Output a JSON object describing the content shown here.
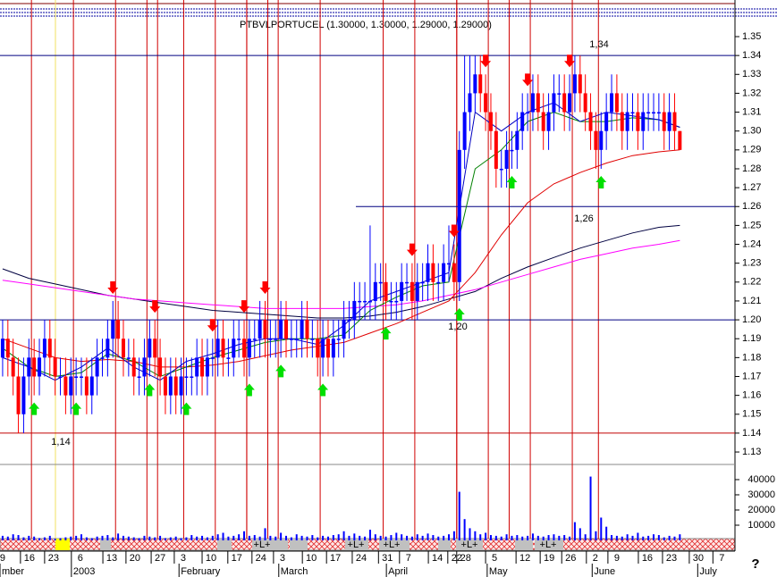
{
  "chart_data": {
    "type": "candlestick",
    "header": "PTBVLPORTUCEL (1.30000, 1.30000, 1.29000, 1.29000)",
    "help": "?",
    "xlim": [
      -0.5,
      139.5
    ],
    "ylim": [
      1.1234,
      1.3694
    ],
    "yticks": [
      1.13,
      1.14,
      1.15,
      1.16,
      1.17,
      1.18,
      1.19,
      {
        "value": 1.2,
        "label": "1.20"
      },
      1.21,
      1.22,
      1.23,
      1.24,
      1.25,
      1.26,
      1.27,
      1.28,
      1.29,
      {
        "value": 1.3,
        "label": "1.30"
      },
      1.31,
      1.32,
      1.33,
      1.34,
      1.35
    ],
    "volume_ylim": [
      0,
      48800
    ],
    "volume_yticks": [
      10000,
      20000,
      30000,
      40000
    ],
    "xticks": [
      {
        "value": 0,
        "label": "9"
      },
      {
        "value": 5.1,
        "label": "16"
      },
      {
        "value": 9.7,
        "label": "23"
      },
      {
        "value": 14.8,
        "label": "6"
      },
      {
        "value": 20.8,
        "label": "13"
      },
      {
        "value": 25.2,
        "label": "20"
      },
      {
        "value": 30,
        "label": "27"
      },
      {
        "value": 34.4,
        "label": "3"
      },
      {
        "value": 39.7,
        "label": "10"
      },
      {
        "value": 44.6,
        "label": "17"
      },
      {
        "value": 49.2,
        "label": "24"
      },
      {
        "value": 53.3,
        "label": "3"
      },
      {
        "value": 58.8,
        "label": "10"
      },
      {
        "value": 63.4,
        "label": "17"
      },
      {
        "value": 68.3,
        "label": "24"
      },
      {
        "value": 73.3,
        "label": "31"
      },
      {
        "value": 77.3,
        "label": "7"
      },
      {
        "value": 82.8,
        "label": "14"
      },
      {
        "value": 86.5,
        "label": "22"
      },
      {
        "value": 88.2,
        "label": "28"
      },
      {
        "value": 93.7,
        "label": "5"
      },
      {
        "value": 99.5,
        "label": "12"
      },
      {
        "value": 104.1,
        "label": "19"
      },
      {
        "value": 108.2,
        "label": "26"
      },
      {
        "value": 112.9,
        "label": "2"
      },
      {
        "value": 117,
        "label": "9"
      },
      {
        "value": 122.8,
        "label": "16"
      },
      {
        "value": 127.4,
        "label": "23"
      },
      {
        "value": 132.5,
        "label": "30"
      },
      {
        "value": 137,
        "label": "7"
      }
    ],
    "month_ticks": [
      {
        "value": -0.5,
        "label": "mber"
      },
      {
        "value": 13.1,
        "label": "2003"
      },
      {
        "value": 33.6,
        "label": "February"
      },
      {
        "value": 52.6,
        "label": "March"
      },
      {
        "value": 73.1,
        "label": "April"
      },
      {
        "value": 92.3,
        "label": "May"
      },
      {
        "value": 112.3,
        "label": "June"
      },
      {
        "value": 132.4,
        "label": "July"
      }
    ],
    "up_color": "#0000ff",
    "down_color": "#ff0000",
    "open": [
      1.18,
      1.19,
      1.18,
      1.17,
      1.15,
      1.17,
      1.18,
      1.17,
      1.18,
      1.19,
      1.18,
      1.17,
      1.17,
      1.16,
      1.17,
      1.17,
      1.17,
      1.16,
      1.17,
      1.18,
      1.18,
      1.19,
      1.2,
      1.19,
      1.18,
      1.18,
      1.17,
      1.17,
      1.18,
      1.19,
      1.18,
      1.17,
      1.16,
      1.17,
      1.16,
      1.17,
      1.17,
      1.17,
      1.18,
      1.17,
      1.18,
      1.18,
      1.19,
      1.18,
      1.18,
      1.19,
      1.19,
      1.18,
      1.19,
      1.19,
      1.2,
      1.19,
      1.19,
      1.19,
      1.2,
      1.19,
      1.19,
      1.19,
      1.2,
      1.19,
      1.19,
      1.18,
      1.19,
      1.18,
      1.19,
      1.19,
      1.2,
      1.2,
      1.21,
      1.21,
      1.21,
      1.21,
      1.22,
      1.22,
      1.21,
      1.21,
      1.21,
      1.22,
      1.22,
      1.21,
      1.22,
      1.22,
      1.23,
      1.22,
      1.22,
      1.23,
      1.23,
      1.22,
      1.29,
      1.31,
      1.32,
      1.33,
      1.32,
      1.31,
      1.3,
      1.28,
      1.28,
      1.29,
      1.29,
      1.3,
      1.31,
      1.31,
      1.32,
      1.31,
      1.3,
      1.31,
      1.32,
      1.32,
      1.31,
      1.32,
      1.33,
      1.32,
      1.31,
      1.3,
      1.29,
      1.3,
      1.31,
      1.32,
      1.31,
      1.3,
      1.31,
      1.31,
      1.3,
      1.31,
      1.31,
      1.31,
      1.31,
      1.3,
      1.31,
      1.3
    ],
    "high": [
      1.2,
      1.2,
      1.19,
      1.18,
      1.18,
      1.19,
      1.19,
      1.19,
      1.2,
      1.2,
      1.19,
      1.18,
      1.18,
      1.18,
      1.18,
      1.18,
      1.18,
      1.18,
      1.19,
      1.19,
      1.2,
      1.21,
      1.21,
      1.2,
      1.19,
      1.19,
      1.18,
      1.19,
      1.2,
      1.2,
      1.19,
      1.18,
      1.18,
      1.18,
      1.18,
      1.18,
      1.18,
      1.19,
      1.19,
      1.19,
      1.19,
      1.2,
      1.2,
      1.19,
      1.2,
      1.2,
      1.2,
      1.2,
      1.2,
      1.21,
      1.21,
      1.2,
      1.2,
      1.21,
      1.21,
      1.2,
      1.2,
      1.21,
      1.21,
      1.2,
      1.2,
      1.2,
      1.2,
      1.2,
      1.2,
      1.21,
      1.21,
      1.22,
      1.22,
      1.22,
      1.25,
      1.23,
      1.23,
      1.23,
      1.22,
      1.22,
      1.23,
      1.23,
      1.23,
      1.23,
      1.23,
      1.24,
      1.24,
      1.23,
      1.24,
      1.25,
      1.24,
      1.3,
      1.34,
      1.34,
      1.34,
      1.34,
      1.33,
      1.32,
      1.31,
      1.29,
      1.3,
      1.3,
      1.31,
      1.32,
      1.32,
      1.33,
      1.33,
      1.32,
      1.32,
      1.33,
      1.33,
      1.33,
      1.33,
      1.34,
      1.34,
      1.33,
      1.32,
      1.31,
      1.31,
      1.32,
      1.33,
      1.33,
      1.32,
      1.32,
      1.32,
      1.32,
      1.32,
      1.32,
      1.32,
      1.32,
      1.32,
      1.32,
      1.32,
      1.3
    ],
    "low": [
      1.17,
      1.17,
      1.16,
      1.14,
      1.14,
      1.16,
      1.16,
      1.16,
      1.17,
      1.17,
      1.16,
      1.16,
      1.15,
      1.15,
      1.16,
      1.16,
      1.15,
      1.15,
      1.16,
      1.17,
      1.17,
      1.18,
      1.18,
      1.17,
      1.17,
      1.16,
      1.16,
      1.16,
      1.17,
      1.17,
      1.16,
      1.15,
      1.15,
      1.15,
      1.15,
      1.16,
      1.16,
      1.16,
      1.16,
      1.16,
      1.17,
      1.17,
      1.17,
      1.17,
      1.17,
      1.18,
      1.17,
      1.17,
      1.18,
      1.18,
      1.18,
      1.18,
      1.18,
      1.18,
      1.18,
      1.18,
      1.18,
      1.18,
      1.18,
      1.18,
      1.17,
      1.17,
      1.17,
      1.17,
      1.18,
      1.18,
      1.19,
      1.19,
      1.2,
      1.2,
      1.2,
      1.2,
      1.21,
      1.2,
      1.2,
      1.2,
      1.2,
      1.21,
      1.2,
      1.2,
      1.21,
      1.21,
      1.21,
      1.21,
      1.21,
      1.22,
      1.21,
      1.21,
      1.28,
      1.3,
      1.31,
      1.31,
      1.3,
      1.29,
      1.27,
      1.27,
      1.27,
      1.28,
      1.28,
      1.29,
      1.3,
      1.3,
      1.3,
      1.29,
      1.29,
      1.3,
      1.31,
      1.3,
      1.3,
      1.31,
      1.31,
      1.3,
      1.29,
      1.28,
      1.28,
      1.29,
      1.3,
      1.3,
      1.29,
      1.29,
      1.3,
      1.29,
      1.29,
      1.3,
      1.3,
      1.3,
      1.29,
      1.29,
      1.29,
      1.29
    ],
    "close": [
      1.19,
      1.18,
      1.17,
      1.15,
      1.17,
      1.18,
      1.17,
      1.18,
      1.19,
      1.18,
      1.17,
      1.17,
      1.16,
      1.17,
      1.17,
      1.17,
      1.16,
      1.17,
      1.18,
      1.18,
      1.19,
      1.2,
      1.19,
      1.18,
      1.18,
      1.17,
      1.17,
      1.18,
      1.19,
      1.18,
      1.17,
      1.16,
      1.17,
      1.16,
      1.17,
      1.17,
      1.17,
      1.18,
      1.17,
      1.18,
      1.18,
      1.19,
      1.18,
      1.18,
      1.19,
      1.19,
      1.18,
      1.19,
      1.19,
      1.2,
      1.19,
      1.19,
      1.19,
      1.2,
      1.19,
      1.19,
      1.19,
      1.2,
      1.19,
      1.19,
      1.18,
      1.19,
      1.18,
      1.19,
      1.19,
      1.2,
      1.2,
      1.21,
      1.21,
      1.21,
      1.21,
      1.22,
      1.22,
      1.21,
      1.21,
      1.21,
      1.22,
      1.22,
      1.21,
      1.22,
      1.22,
      1.23,
      1.22,
      1.22,
      1.23,
      1.23,
      1.22,
      1.29,
      1.31,
      1.32,
      1.33,
      1.32,
      1.31,
      1.3,
      1.28,
      1.28,
      1.29,
      1.29,
      1.3,
      1.31,
      1.31,
      1.32,
      1.31,
      1.3,
      1.31,
      1.32,
      1.32,
      1.31,
      1.32,
      1.33,
      1.32,
      1.31,
      1.3,
      1.29,
      1.3,
      1.31,
      1.32,
      1.31,
      1.3,
      1.31,
      1.31,
      1.3,
      1.31,
      1.31,
      1.31,
      1.31,
      1.3,
      1.31,
      1.3,
      1.29
    ],
    "volume": [
      3000,
      2500,
      4000,
      3500,
      2000,
      3000,
      2500,
      1500,
      2000,
      3000,
      1000,
      1500,
      2000,
      2500,
      3000,
      4000,
      2000,
      1500,
      2500,
      3000,
      3500,
      2000,
      4500,
      3000,
      2500,
      2000,
      1500,
      3000,
      2500,
      2000,
      3000,
      1500,
      2000,
      2500,
      1500,
      2000,
      3500,
      2500,
      3000,
      2000,
      3000,
      4000,
      5000,
      2500,
      3000,
      4000,
      6000,
      3000,
      3500,
      2500,
      8000,
      3000,
      2500,
      5000,
      3000,
      2000,
      4000,
      3000,
      2500,
      3500,
      2000,
      3000,
      2500,
      3500,
      4000,
      6000,
      3000,
      4500,
      3000,
      2500,
      7000,
      4000,
      3000,
      2500,
      3500,
      5000,
      4000,
      3000,
      2500,
      4000,
      3000,
      4500,
      3500,
      2500,
      3000,
      4000,
      6000,
      32000,
      14000,
      8000,
      6000,
      4000,
      5000,
      3500,
      3000,
      2500,
      4000,
      3000,
      3500,
      2500,
      3000,
      4500,
      3000,
      2500,
      3500,
      4000,
      3000,
      3500,
      2500,
      12000,
      8000,
      4000,
      42000,
      6000,
      15000,
      9000,
      3500,
      3000,
      2500,
      4000,
      3000,
      5000,
      2500,
      3000,
      4000,
      3500,
      2000,
      3000,
      2500,
      4000
    ],
    "volume_color": "#0000ff",
    "ma_x": [
      0,
      5,
      10,
      15,
      20,
      25,
      30,
      35,
      40,
      45,
      50,
      55,
      60,
      65,
      70,
      75,
      80,
      85,
      90,
      95,
      100,
      105,
      110,
      115,
      120,
      125,
      129
    ],
    "moving_averages": [
      {
        "color": "#000040",
        "values": [
          1.227,
          1.222,
          1.219,
          1.216,
          1.213,
          1.211,
          1.209,
          1.207,
          1.205,
          1.204,
          1.203,
          1.202,
          1.201,
          1.201,
          1.202,
          1.204,
          1.207,
          1.211,
          1.215,
          1.222,
          1.228,
          1.233,
          1.238,
          1.242,
          1.246,
          1.249,
          1.25
        ]
      },
      {
        "color": "#ff00ff",
        "values": [
          1.221,
          1.219,
          1.217,
          1.215,
          1.213,
          1.211,
          1.21,
          1.209,
          1.208,
          1.207,
          1.206,
          1.206,
          1.206,
          1.206,
          1.207,
          1.208,
          1.21,
          1.213,
          1.216,
          1.22,
          1.224,
          1.228,
          1.232,
          1.235,
          1.238,
          1.24,
          1.242
        ]
      },
      {
        "color": "#e00000",
        "values": [
          1.19,
          1.185,
          1.18,
          1.178,
          1.179,
          1.178,
          1.175,
          1.175,
          1.176,
          1.178,
          1.181,
          1.184,
          1.186,
          1.188,
          1.193,
          1.198,
          1.204,
          1.21,
          1.225,
          1.245,
          1.262,
          1.272,
          1.278,
          1.283,
          1.287,
          1.289,
          1.29
        ]
      },
      {
        "color": "#008000",
        "values": [
          1.185,
          1.175,
          1.17,
          1.172,
          1.182,
          1.178,
          1.17,
          1.175,
          1.18,
          1.184,
          1.188,
          1.19,
          1.19,
          1.192,
          1.205,
          1.212,
          1.218,
          1.22,
          1.28,
          1.29,
          1.305,
          1.31,
          1.305,
          1.305,
          1.307,
          1.306,
          1.302
        ]
      },
      {
        "color": "#0000c0",
        "values": [
          1.18,
          1.175,
          1.168,
          1.175,
          1.185,
          1.175,
          1.168,
          1.178,
          1.182,
          1.187,
          1.19,
          1.19,
          1.187,
          1.197,
          1.21,
          1.215,
          1.22,
          1.225,
          1.31,
          1.3,
          1.31,
          1.315,
          1.305,
          1.31,
          1.308,
          1.306,
          1.302
        ]
      }
    ],
    "levels": {
      "values": [
        1.34,
        1.26,
        1.2,
        1.14
      ],
      "value_labels": [
        "1,34",
        "1,26",
        "1,20",
        "1,14"
      ],
      "colors": [
        "#000080",
        "#000080",
        "#000080",
        "#c00000"
      ]
    },
    "buy_signals": [
      6,
      14,
      28,
      35,
      47,
      53,
      61,
      73,
      87,
      97,
      114
    ],
    "sell_signals": [
      21,
      29,
      40,
      46,
      50,
      78,
      86,
      92,
      100,
      108
    ],
    "buy_color": "#00e000",
    "sell_color": "#ff0000",
    "strip_labels": [
      "+L+",
      "+L+",
      "+L+",
      "+L+",
      "+L+"
    ]
  }
}
